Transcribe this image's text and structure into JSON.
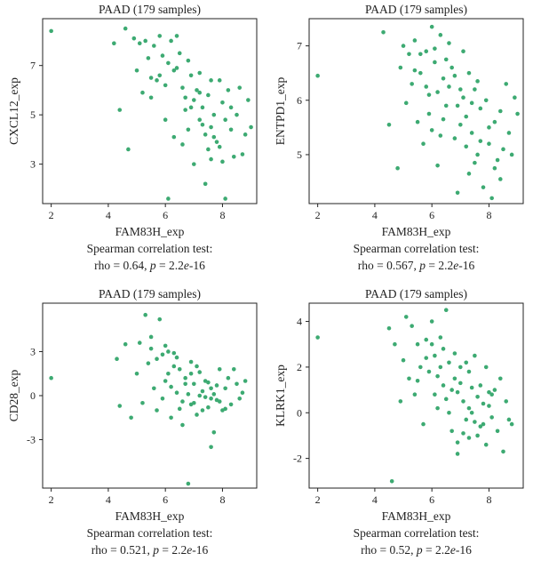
{
  "chart_data": [
    {
      "type": "scatter",
      "title": "PAAD (179 samples)",
      "xlabel": "FAM83H_exp",
      "ylabel": "CXCL12_exp",
      "xticks": [
        2,
        4,
        6,
        8
      ],
      "yticks": [
        3,
        5,
        7
      ],
      "xlim": [
        1.7,
        9.2
      ],
      "ylim": [
        1.4,
        8.9
      ],
      "stat_line1": "Spearman correlation test:",
      "stat_rho": "rho = 0.64, ",
      "stat_p_label": "p",
      "stat_p_value": " = 2.2",
      "stat_e": "e",
      "stat_exp": "-16",
      "color": "#3daa72",
      "points": [
        [
          2.0,
          8.4
        ],
        [
          4.2,
          7.9
        ],
        [
          4.4,
          5.2
        ],
        [
          4.6,
          8.5
        ],
        [
          4.7,
          3.6
        ],
        [
          4.9,
          8.1
        ],
        [
          5.0,
          6.8
        ],
        [
          5.1,
          7.9
        ],
        [
          5.2,
          5.9
        ],
        [
          5.3,
          8.0
        ],
        [
          5.4,
          7.3
        ],
        [
          5.5,
          6.5
        ],
        [
          5.6,
          7.8
        ],
        [
          5.7,
          6.4
        ],
        [
          5.8,
          8.2
        ],
        [
          5.9,
          7.4
        ],
        [
          6.0,
          6.2
        ],
        [
          6.1,
          1.6
        ],
        [
          6.1,
          7.1
        ],
        [
          6.2,
          8.0
        ],
        [
          6.3,
          6.8
        ],
        [
          6.4,
          8.2
        ],
        [
          6.5,
          7.5
        ],
        [
          6.6,
          6.1
        ],
        [
          6.7,
          5.2
        ],
        [
          6.8,
          7.2
        ],
        [
          6.8,
          4.4
        ],
        [
          6.9,
          6.6
        ],
        [
          7.0,
          5.6
        ],
        [
          7.0,
          3.0
        ],
        [
          7.1,
          6.0
        ],
        [
          7.2,
          4.8
        ],
        [
          7.2,
          6.7
        ],
        [
          7.3,
          5.3
        ],
        [
          7.4,
          4.2
        ],
        [
          7.4,
          2.2
        ],
        [
          7.5,
          5.8
        ],
        [
          7.5,
          3.6
        ],
        [
          7.6,
          6.4
        ],
        [
          7.6,
          4.5
        ],
        [
          7.7,
          5.0
        ],
        [
          7.8,
          3.9
        ],
        [
          7.9,
          6.4
        ],
        [
          8.0,
          5.5
        ],
        [
          8.0,
          3.1
        ],
        [
          8.1,
          1.6
        ],
        [
          8.1,
          4.8
        ],
        [
          8.2,
          6.0
        ],
        [
          8.3,
          4.4
        ],
        [
          8.4,
          3.3
        ],
        [
          8.5,
          5.0
        ],
        [
          8.6,
          6.1
        ],
        [
          8.7,
          3.4
        ],
        [
          8.8,
          4.2
        ],
        [
          8.9,
          5.6
        ],
        [
          9.0,
          4.5
        ],
        [
          5.5,
          5.7
        ],
        [
          6.0,
          4.8
        ],
        [
          6.3,
          4.1
        ],
        [
          6.6,
          3.8
        ],
        [
          6.9,
          5.3
        ],
        [
          7.2,
          5.9
        ],
        [
          7.7,
          4.1
        ],
        [
          7.9,
          3.7
        ],
        [
          5.8,
          6.6
        ],
        [
          6.4,
          6.9
        ],
        [
          6.7,
          5.7
        ],
        [
          7.3,
          4.6
        ],
        [
          7.6,
          3.2
        ],
        [
          8.3,
          5.3
        ]
      ]
    },
    {
      "type": "scatter",
      "title": "PAAD (179 samples)",
      "xlabel": "FAM83H_exp",
      "ylabel": "ENTPD1_exp",
      "xticks": [
        2,
        4,
        6,
        8
      ],
      "yticks": [
        5,
        6,
        7
      ],
      "xlim": [
        1.7,
        9.2
      ],
      "ylim": [
        4.1,
        7.5
      ],
      "stat_line1": "Spearman correlation test:",
      "stat_rho": "rho = 0.567, ",
      "stat_p_label": "p",
      "stat_p_value": " = 2.2",
      "stat_e": "e",
      "stat_exp": "-16",
      "color": "#3daa72",
      "points": [
        [
          2.0,
          6.45
        ],
        [
          4.3,
          7.25
        ],
        [
          4.5,
          5.55
        ],
        [
          4.8,
          4.75
        ],
        [
          4.9,
          6.6
        ],
        [
          5.0,
          7.0
        ],
        [
          5.1,
          5.95
        ],
        [
          5.2,
          6.85
        ],
        [
          5.3,
          6.3
        ],
        [
          5.4,
          7.1
        ],
        [
          5.5,
          5.6
        ],
        [
          5.6,
          6.5
        ],
        [
          5.7,
          5.2
        ],
        [
          5.8,
          6.9
        ],
        [
          5.9,
          6.1
        ],
        [
          6.0,
          7.35
        ],
        [
          6.0,
          5.45
        ],
        [
          6.1,
          6.7
        ],
        [
          6.2,
          4.8
        ],
        [
          6.3,
          7.2
        ],
        [
          6.4,
          6.4
        ],
        [
          6.5,
          5.9
        ],
        [
          6.6,
          7.05
        ],
        [
          6.7,
          6.6
        ],
        [
          6.8,
          5.3
        ],
        [
          6.9,
          4.3
        ],
        [
          7.0,
          6.2
        ],
        [
          7.1,
          6.9
        ],
        [
          7.2,
          5.7
        ],
        [
          7.3,
          6.5
        ],
        [
          7.3,
          4.65
        ],
        [
          7.4,
          5.4
        ],
        [
          7.5,
          6.2
        ],
        [
          7.6,
          5.0
        ],
        [
          7.7,
          5.85
        ],
        [
          7.8,
          4.4
        ],
        [
          7.9,
          6.0
        ],
        [
          8.0,
          5.2
        ],
        [
          8.1,
          4.2
        ],
        [
          8.2,
          5.6
        ],
        [
          8.3,
          4.9
        ],
        [
          8.4,
          5.8
        ],
        [
          8.5,
          5.1
        ],
        [
          8.6,
          6.3
        ],
        [
          8.7,
          5.4
        ],
        [
          8.8,
          5.0
        ],
        [
          8.9,
          6.05
        ],
        [
          9.0,
          5.75
        ],
        [
          5.4,
          6.55
        ],
        [
          5.8,
          6.25
        ],
        [
          6.2,
          6.15
        ],
        [
          6.5,
          6.75
        ],
        [
          6.8,
          6.45
        ],
        [
          7.1,
          6.05
        ],
        [
          7.4,
          5.95
        ],
        [
          7.7,
          5.25
        ],
        [
          8.0,
          5.5
        ],
        [
          5.9,
          5.75
        ],
        [
          6.4,
          5.65
        ],
        [
          6.9,
          5.9
        ],
        [
          7.2,
          5.15
        ],
        [
          7.6,
          6.35
        ],
        [
          8.2,
          4.75
        ],
        [
          6.1,
          6.95
        ],
        [
          6.6,
          6.25
        ],
        [
          7.0,
          5.55
        ],
        [
          7.5,
          4.85
        ],
        [
          8.4,
          4.55
        ],
        [
          5.6,
          6.85
        ],
        [
          6.3,
          5.35
        ]
      ]
    },
    {
      "type": "scatter",
      "title": "PAAD (179 samples)",
      "xlabel": "FAM83H_exp",
      "ylabel": "CD28_exp",
      "xticks": [
        2,
        4,
        6,
        8
      ],
      "yticks": [
        -3,
        0,
        3
      ],
      "xlim": [
        1.7,
        9.2
      ],
      "ylim": [
        -6.3,
        6.3
      ],
      "stat_line1": "Spearman correlation test:",
      "stat_rho": "rho = 0.521, ",
      "stat_p_label": "p",
      "stat_p_value": " = 2.2",
      "stat_e": "e",
      "stat_exp": "-16",
      "color": "#3daa72",
      "points": [
        [
          2.0,
          1.2
        ],
        [
          4.3,
          2.5
        ],
        [
          4.4,
          -0.7
        ],
        [
          4.6,
          3.5
        ],
        [
          4.8,
          -1.5
        ],
        [
          5.0,
          1.5
        ],
        [
          5.1,
          3.6
        ],
        [
          5.2,
          -0.5
        ],
        [
          5.3,
          5.5
        ],
        [
          5.4,
          2.2
        ],
        [
          5.5,
          3.2
        ],
        [
          5.6,
          0.5
        ],
        [
          5.7,
          -1.0
        ],
        [
          5.8,
          5.2
        ],
        [
          5.9,
          2.8
        ],
        [
          6.0,
          1.0
        ],
        [
          6.1,
          3.0
        ],
        [
          6.2,
          -1.5
        ],
        [
          6.3,
          2.0
        ],
        [
          6.4,
          0.2
        ],
        [
          6.5,
          1.8
        ],
        [
          6.6,
          -2.0
        ],
        [
          6.7,
          0.8
        ],
        [
          6.8,
          -6.0
        ],
        [
          6.9,
          1.5
        ],
        [
          7.0,
          -0.5
        ],
        [
          7.1,
          2.0
        ],
        [
          7.2,
          0.0
        ],
        [
          7.3,
          -1.0
        ],
        [
          7.4,
          1.0
        ],
        [
          7.5,
          -0.8
        ],
        [
          7.6,
          0.5
        ],
        [
          7.7,
          -2.5
        ],
        [
          7.8,
          -0.3
        ],
        [
          7.9,
          1.8
        ],
        [
          8.0,
          -1.0
        ],
        [
          8.1,
          0.5
        ],
        [
          8.2,
          1.2
        ],
        [
          8.3,
          -0.6
        ],
        [
          8.4,
          1.8
        ],
        [
          8.5,
          0.8
        ],
        [
          8.6,
          -0.2
        ],
        [
          8.7,
          0.2
        ],
        [
          8.8,
          1.0
        ],
        [
          7.6,
          -3.5
        ],
        [
          5.7,
          2.5
        ],
        [
          6.1,
          1.5
        ],
        [
          6.4,
          2.6
        ],
        [
          6.7,
          1.2
        ],
        [
          7.0,
          0.8
        ],
        [
          7.3,
          0.3
        ],
        [
          7.6,
          -0.2
        ],
        [
          7.9,
          -0.4
        ],
        [
          6.2,
          0.6
        ],
        [
          6.6,
          -0.4
        ],
        [
          6.9,
          2.3
        ],
        [
          7.2,
          1.6
        ],
        [
          7.5,
          0.9
        ],
        [
          5.9,
          -0.2
        ],
        [
          6.5,
          -0.9
        ],
        [
          6.8,
          0.1
        ],
        [
          7.1,
          -1.3
        ],
        [
          7.4,
          -0.1
        ],
        [
          7.8,
          0.7
        ],
        [
          5.5,
          4.0
        ],
        [
          6.0,
          3.4
        ],
        [
          6.3,
          2.9
        ],
        [
          7.7,
          0.1
        ],
        [
          8.1,
          -0.9
        ],
        [
          6.9,
          -0.6
        ]
      ]
    },
    {
      "type": "scatter",
      "title": "PAAD (179 samples)",
      "xlabel": "FAM83H_exp",
      "ylabel": "KLRK1_exp",
      "xticks": [
        2,
        4,
        6,
        8
      ],
      "yticks": [
        -2,
        0,
        2,
        4
      ],
      "xlim": [
        1.7,
        9.2
      ],
      "ylim": [
        -3.3,
        4.8
      ],
      "stat_line1": "Spearman correlation test:",
      "stat_rho": "rho = 0.52, ",
      "stat_p_label": "p",
      "stat_p_value": " = 2.2",
      "stat_e": "e",
      "stat_exp": "-16",
      "color": "#3daa72",
      "points": [
        [
          2.0,
          3.3
        ],
        [
          4.5,
          3.7
        ],
        [
          4.6,
          -3.0
        ],
        [
          4.7,
          3.0
        ],
        [
          4.9,
          0.5
        ],
        [
          5.0,
          2.3
        ],
        [
          5.1,
          4.2
        ],
        [
          5.2,
          1.5
        ],
        [
          5.3,
          3.8
        ],
        [
          5.4,
          0.8
        ],
        [
          5.5,
          3.0
        ],
        [
          5.6,
          2.0
        ],
        [
          5.7,
          -0.5
        ],
        [
          5.8,
          3.2
        ],
        [
          5.9,
          1.8
        ],
        [
          6.0,
          4.0
        ],
        [
          6.1,
          2.5
        ],
        [
          6.2,
          0.2
        ],
        [
          6.3,
          3.3
        ],
        [
          6.4,
          1.2
        ],
        [
          6.5,
          4.5
        ],
        [
          6.6,
          2.2
        ],
        [
          6.7,
          -0.8
        ],
        [
          6.8,
          1.5
        ],
        [
          6.9,
          -1.8
        ],
        [
          7.0,
          2.0
        ],
        [
          7.1,
          0.5
        ],
        [
          7.2,
          -0.3
        ],
        [
          7.3,
          1.8
        ],
        [
          7.4,
          0.0
        ],
        [
          7.5,
          2.5
        ],
        [
          7.6,
          -1.0
        ],
        [
          7.7,
          1.2
        ],
        [
          7.8,
          -0.5
        ],
        [
          7.9,
          2.0
        ],
        [
          8.0,
          0.3
        ],
        [
          8.1,
          -0.2
        ],
        [
          8.2,
          1.0
        ],
        [
          8.3,
          -0.8
        ],
        [
          8.4,
          1.5
        ],
        [
          8.5,
          -1.7
        ],
        [
          8.6,
          0.5
        ],
        [
          8.7,
          -0.3
        ],
        [
          8.8,
          -0.5
        ],
        [
          6.4,
          2.8
        ],
        [
          6.7,
          1.0
        ],
        [
          7.0,
          1.3
        ],
        [
          7.3,
          0.2
        ],
        [
          7.6,
          0.7
        ],
        [
          5.8,
          2.4
        ],
        [
          6.2,
          1.6
        ],
        [
          6.5,
          0.6
        ],
        [
          6.8,
          2.6
        ],
        [
          7.1,
          -0.9
        ],
        [
          7.4,
          1.1
        ],
        [
          7.7,
          -0.6
        ],
        [
          8.0,
          0.9
        ],
        [
          6.0,
          3.0
        ],
        [
          6.6,
          0.0
        ],
        [
          6.9,
          0.9
        ],
        [
          7.2,
          2.2
        ],
        [
          7.5,
          -0.4
        ],
        [
          7.8,
          0.4
        ],
        [
          5.5,
          1.4
        ],
        [
          6.3,
          2.0
        ],
        [
          6.9,
          -1.3
        ],
        [
          7.3,
          -1.1
        ],
        [
          8.1,
          0.8
        ],
        [
          7.9,
          -1.4
        ],
        [
          6.1,
          0.8
        ]
      ]
    }
  ]
}
